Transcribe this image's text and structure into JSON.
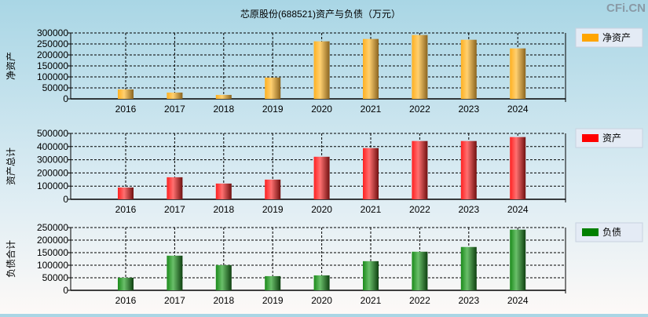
{
  "title": "芯原股份(688521)资产与负债（万元）",
  "watermark": "CFi.CN",
  "chart_data": [
    {
      "type": "bar",
      "ylabel": "净资产",
      "legend": "净资产",
      "color": "#FFA500",
      "gradient": [
        "#ffb020",
        "#ffd070",
        "#8a6420"
      ],
      "categories": [
        "2016",
        "2017",
        "2018",
        "2019",
        "2020",
        "2021",
        "2022",
        "2023",
        "2024"
      ],
      "values": [
        43000,
        28700,
        18000,
        96900,
        262000,
        272700,
        290700,
        269000,
        229700
      ],
      "ylim": [
        0,
        300000
      ],
      "yticks": [
        "0",
        "50000",
        "100000",
        "150000",
        "200000",
        "250000",
        "300000"
      ],
      "grid": true,
      "legend_position": "right"
    },
    {
      "type": "bar",
      "ylabel": "资产总计",
      "legend": "资产",
      "color": "#FF0000",
      "gradient": [
        "#ff2020",
        "#ff7070",
        "#701010"
      ],
      "categories": [
        "2016",
        "2017",
        "2018",
        "2019",
        "2020",
        "2021",
        "2022",
        "2023",
        "2024"
      ],
      "values": [
        89600,
        167300,
        119500,
        149400,
        322700,
        388400,
        442200,
        442200,
        472100
      ],
      "ylim": [
        0,
        500000
      ],
      "yticks": [
        "0",
        "100000",
        "200000",
        "300000",
        "400000",
        "500000"
      ],
      "grid": true,
      "legend_position": "right"
    },
    {
      "type": "bar",
      "ylabel": "负债合计",
      "legend": "负债",
      "color": "#008000",
      "gradient": [
        "#1a8a1a",
        "#6abf6a",
        "#0e4010"
      ],
      "categories": [
        "2016",
        "2017",
        "2018",
        "2019",
        "2020",
        "2021",
        "2022",
        "2023",
        "2024"
      ],
      "values": [
        50200,
        138000,
        100400,
        56500,
        59600,
        116100,
        153800,
        172600,
        241600
      ],
      "ylim": [
        0,
        250000
      ],
      "yticks": [
        "0",
        "50000",
        "100000",
        "150000",
        "200000",
        "250000"
      ],
      "grid": true,
      "legend_position": "right"
    }
  ]
}
